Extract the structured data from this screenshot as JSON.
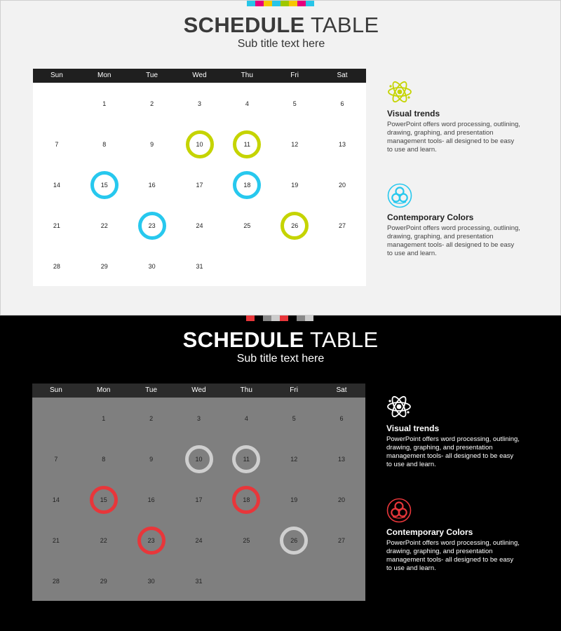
{
  "slides": [
    {
      "theme": "light",
      "strip_colors": [
        "#27c5e8",
        "#e6007e",
        "#f7c600",
        "#27c5e8",
        "#9ec800",
        "#f7c600",
        "#e6007e",
        "#27c5e8"
      ],
      "title_bold": "SCHEDULE",
      "title_regular": "TABLE",
      "subtitle": "Sub title text here",
      "weekdays": [
        "Sun",
        "Mon",
        "Tue",
        "Wed",
        "Thu",
        "Fri",
        "Sat"
      ],
      "first_weekday_index": 1,
      "days_in_month": 31,
      "highlights": [
        {
          "day": 10,
          "color": "#c5d400"
        },
        {
          "day": 11,
          "color": "#c5d400"
        },
        {
          "day": 15,
          "color": "#27c8ee"
        },
        {
          "day": 18,
          "color": "#27c8ee"
        },
        {
          "day": 23,
          "color": "#27c8ee"
        },
        {
          "day": 26,
          "color": "#c5d400"
        }
      ],
      "items": [
        {
          "icon": "atom-icon",
          "icon_color": "#c5d400",
          "heading": "Visual trends",
          "text": "PowerPoint offers word processing, outlining, drawing, graphing, and presentation management tools- all designed to be easy to use and learn."
        },
        {
          "icon": "biohazard-icon",
          "icon_color": "#27c8ee",
          "heading": "Contemporary Colors",
          "text": "PowerPoint offers word processing, outlining, drawing, graphing, and presentation management tools- all designed to be easy to use and learn."
        }
      ]
    },
    {
      "theme": "dark",
      "strip_colors": [
        "#e8363a",
        "#000000",
        "#888888",
        "#cccccc",
        "#e8363a",
        "#000000",
        "#888888",
        "#cccccc"
      ],
      "title_bold": "SCHEDULE",
      "title_regular": "TABLE",
      "subtitle": "Sub title text here",
      "weekdays": [
        "Sun",
        "Mon",
        "Tue",
        "Wed",
        "Thu",
        "Fri",
        "Sat"
      ],
      "first_weekday_index": 1,
      "days_in_month": 31,
      "highlights": [
        {
          "day": 10,
          "color": "#cfcfcf"
        },
        {
          "day": 11,
          "color": "#cfcfcf"
        },
        {
          "day": 15,
          "color": "#e8363a"
        },
        {
          "day": 18,
          "color": "#e8363a"
        },
        {
          "day": 23,
          "color": "#e8363a"
        },
        {
          "day": 26,
          "color": "#cfcfcf"
        }
      ],
      "items": [
        {
          "icon": "atom-icon",
          "icon_color": "#ffffff",
          "heading": "Visual trends",
          "text": "PowerPoint offers word processing, outlining, drawing, graphing, and presentation management tools- all designed to be easy to use and learn."
        },
        {
          "icon": "biohazard-icon",
          "icon_color": "#e8363a",
          "heading": "Contemporary Colors",
          "text": "PowerPoint offers word processing, outlining, drawing, graphing, and presentation management tools- all designed to be easy to use and learn."
        }
      ]
    }
  ]
}
